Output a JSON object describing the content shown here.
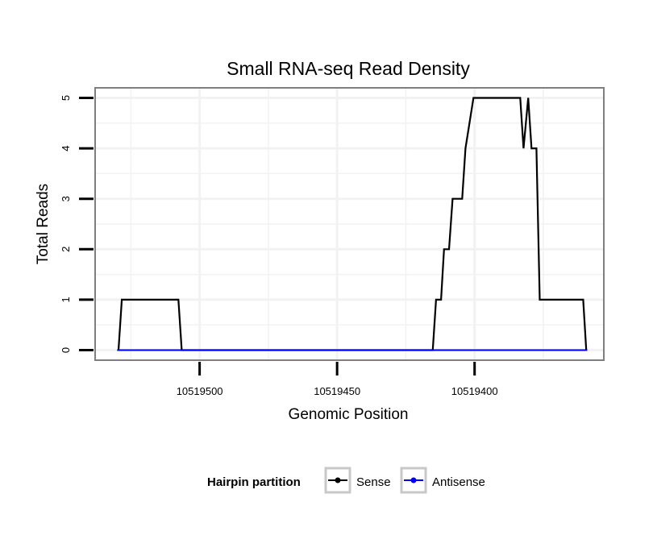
{
  "chart_data": {
    "type": "line",
    "title": "Small RNA-seq Read Density",
    "xlabel": "Genomic Position",
    "ylabel": "Total Reads",
    "x_reversed": true,
    "xlim": [
      10519538,
      10519353
    ],
    "ylim": [
      -0.2,
      5.2
    ],
    "x_ticks": [
      10519500,
      10519450,
      10519400
    ],
    "x_tick_labels": [
      "10519500",
      "10519450",
      "10519400"
    ],
    "y_ticks": [
      0,
      1,
      2,
      3,
      4,
      5
    ],
    "y_tick_labels": [
      "0",
      "1",
      "2",
      "3",
      "4",
      "5"
    ],
    "grid": true,
    "legend": {
      "title": "Hairpin partition",
      "position": "bottom",
      "entries": [
        {
          "name": "Sense",
          "color": "#000000"
        },
        {
          "name": "Antisense",
          "color": "#0000ff"
        }
      ]
    },
    "series": [
      {
        "name": "Sense",
        "color": "#000000",
        "x": [
          10519529.5,
          10519528.3,
          10519507.7,
          10519506.5,
          10519415.2,
          10519414,
          10519412.2,
          10519411.1,
          10519409.3,
          10519408,
          10519404.5,
          10519403.3,
          10519400.4,
          10519396.3,
          10519383.4,
          10519382.2,
          10519380.5,
          10519379.3,
          10519377.5,
          10519376.3,
          10519375.2,
          10519373.4,
          10519360.5,
          10519359.4
        ],
        "y": [
          0,
          1,
          1,
          0,
          0,
          1,
          1,
          2,
          2,
          3,
          3,
          4,
          5,
          5,
          5,
          4,
          5,
          4,
          4,
          1,
          1,
          1,
          1,
          0
        ]
      },
      {
        "name": "Antisense",
        "color": "#0000ff",
        "x": [
          10519530,
          10519359
        ],
        "y": [
          0,
          0
        ]
      }
    ]
  }
}
